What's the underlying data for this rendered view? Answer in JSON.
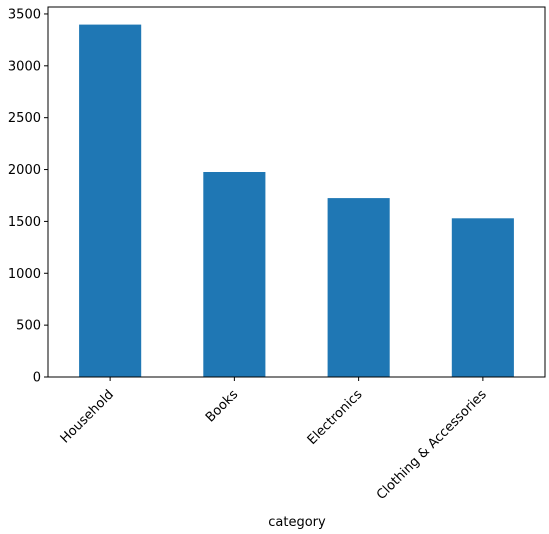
{
  "chart_data": {
    "type": "bar",
    "categories": [
      "Household",
      "Books",
      "Electronics",
      "Clothing & Accessories"
    ],
    "values": [
      3397,
      1976,
      1725,
      1530
    ],
    "title": "",
    "xlabel": "category",
    "ylabel": "",
    "ylim": [
      0,
      3567
    ],
    "yticks": [
      0,
      500,
      1000,
      1500,
      2000,
      2500,
      3000,
      3500
    ],
    "grid": false,
    "bar_color": "#1f77b4",
    "xtick_rotation": 45
  }
}
